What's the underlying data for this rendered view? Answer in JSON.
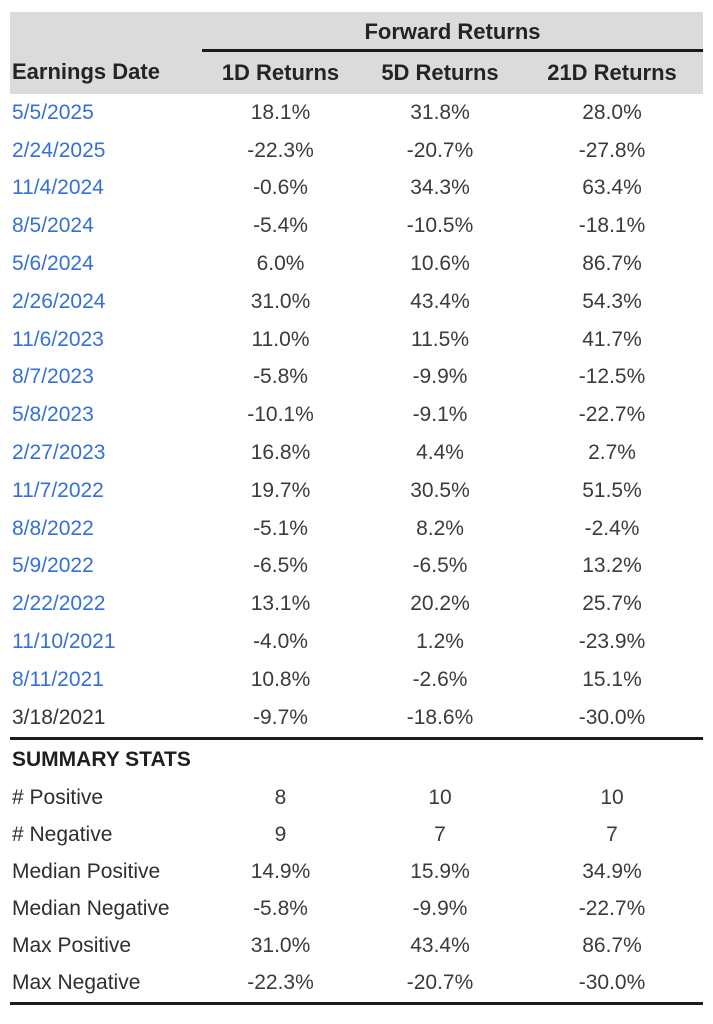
{
  "chart_data": {
    "type": "table",
    "title": "Forward Returns",
    "group_header": "Forward Returns",
    "columns": [
      "Earnings Date",
      "1D Returns",
      "5D Returns",
      "21D Returns"
    ],
    "rows": [
      {
        "date": "5/5/2025",
        "values": [
          "18.1%",
          "31.8%",
          "28.0%"
        ],
        "link": true
      },
      {
        "date": "2/24/2025",
        "values": [
          "-22.3%",
          "-20.7%",
          "-27.8%"
        ],
        "link": true
      },
      {
        "date": "11/4/2024",
        "values": [
          "-0.6%",
          "34.3%",
          "63.4%"
        ],
        "link": true
      },
      {
        "date": "8/5/2024",
        "values": [
          "-5.4%",
          "-10.5%",
          "-18.1%"
        ],
        "link": true
      },
      {
        "date": "5/6/2024",
        "values": [
          "6.0%",
          "10.6%",
          "86.7%"
        ],
        "link": true
      },
      {
        "date": "2/26/2024",
        "values": [
          "31.0%",
          "43.4%",
          "54.3%"
        ],
        "link": true
      },
      {
        "date": "11/6/2023",
        "values": [
          "11.0%",
          "11.5%",
          "41.7%"
        ],
        "link": true
      },
      {
        "date": "8/7/2023",
        "values": [
          "-5.8%",
          "-9.9%",
          "-12.5%"
        ],
        "link": true
      },
      {
        "date": "5/8/2023",
        "values": [
          "-10.1%",
          "-9.1%",
          "-22.7%"
        ],
        "link": true
      },
      {
        "date": "2/27/2023",
        "values": [
          "16.8%",
          "4.4%",
          "2.7%"
        ],
        "link": true
      },
      {
        "date": "11/7/2022",
        "values": [
          "19.7%",
          "30.5%",
          "51.5%"
        ],
        "link": true
      },
      {
        "date": "8/8/2022",
        "values": [
          "-5.1%",
          "8.2%",
          "-2.4%"
        ],
        "link": true
      },
      {
        "date": "5/9/2022",
        "values": [
          "-6.5%",
          "-6.5%",
          "13.2%"
        ],
        "link": true
      },
      {
        "date": "2/22/2022",
        "values": [
          "13.1%",
          "20.2%",
          "25.7%"
        ],
        "link": true
      },
      {
        "date": "11/10/2021",
        "values": [
          "-4.0%",
          "1.2%",
          "-23.9%"
        ],
        "link": true
      },
      {
        "date": "8/11/2021",
        "values": [
          "10.8%",
          "-2.6%",
          "15.1%"
        ],
        "link": true
      },
      {
        "date": "3/18/2021",
        "values": [
          "-9.7%",
          "-18.6%",
          "-30.0%"
        ],
        "link": false
      }
    ],
    "summary_title": "SUMMARY STATS",
    "summary_rows": [
      {
        "label": "# Positive",
        "values": [
          "8",
          "10",
          "10"
        ]
      },
      {
        "label": "# Negative",
        "values": [
          "9",
          "7",
          "7"
        ]
      },
      {
        "label": "Median Positive",
        "values": [
          "14.9%",
          "15.9%",
          "34.9%"
        ]
      },
      {
        "label": "Median Negative",
        "values": [
          "-5.8%",
          "-9.9%",
          "-22.7%"
        ]
      },
      {
        "label": "Max Positive",
        "values": [
          "31.0%",
          "43.4%",
          "86.7%"
        ]
      },
      {
        "label": "Max Negative",
        "values": [
          "-22.3%",
          "-20.7%",
          "-30.0%"
        ]
      }
    ]
  },
  "colors": {
    "header_bg": "#dbdbdb",
    "link_blue": "#3470d8",
    "text_dark": "#3b3b3b",
    "rule_dark": "#1b1b1b"
  }
}
